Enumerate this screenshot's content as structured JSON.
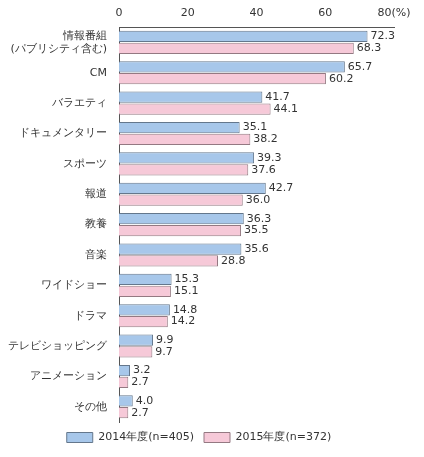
{
  "chart_data": {
    "type": "bar",
    "orientation": "horizontal",
    "categories": [
      [
        "情報番組",
        "(パブリシティ含む)"
      ],
      "CM",
      "バラエティ",
      "ドキュメンタリー",
      "スポーツ",
      "報道",
      "教養",
      "音楽",
      "ワイドショー",
      "ドラマ",
      "テレビショッピング",
      "アニメーション",
      "その他"
    ],
    "series": [
      {
        "name": "2014年度(n=405)",
        "color": "#a7c7ea",
        "values": [
          72.3,
          65.7,
          41.7,
          35.1,
          39.3,
          42.7,
          36.3,
          35.6,
          15.3,
          14.8,
          9.9,
          3.2,
          4.0
        ],
        "value_labels": [
          "72.3",
          "65.7",
          "41.7",
          "35.1",
          "39.3",
          "42.7",
          "36.3",
          "35.6",
          "15.3",
          "14.8",
          "9.9",
          "3.2",
          "4.0"
        ]
      },
      {
        "name": "2015年度(n=372)",
        "color": "#f6c9d8",
        "values": [
          68.3,
          60.2,
          44.1,
          38.2,
          37.6,
          36.0,
          35.5,
          28.8,
          15.1,
          14.2,
          9.7,
          2.7,
          2.7
        ],
        "value_labels": [
          "68.3",
          "60.2",
          "44.1",
          "38.2",
          "37.6",
          "36.0",
          "35.5",
          "28.8",
          "15.1",
          "14.2",
          "9.7",
          "2.7",
          "2.7"
        ]
      }
    ],
    "xlim": [
      0,
      80
    ],
    "xticks": [
      0,
      20,
      40,
      60,
      {
        "value": 80,
        "label": "80(%)"
      }
    ],
    "grid": false,
    "legend": "bottom",
    "data_labels": true
  }
}
